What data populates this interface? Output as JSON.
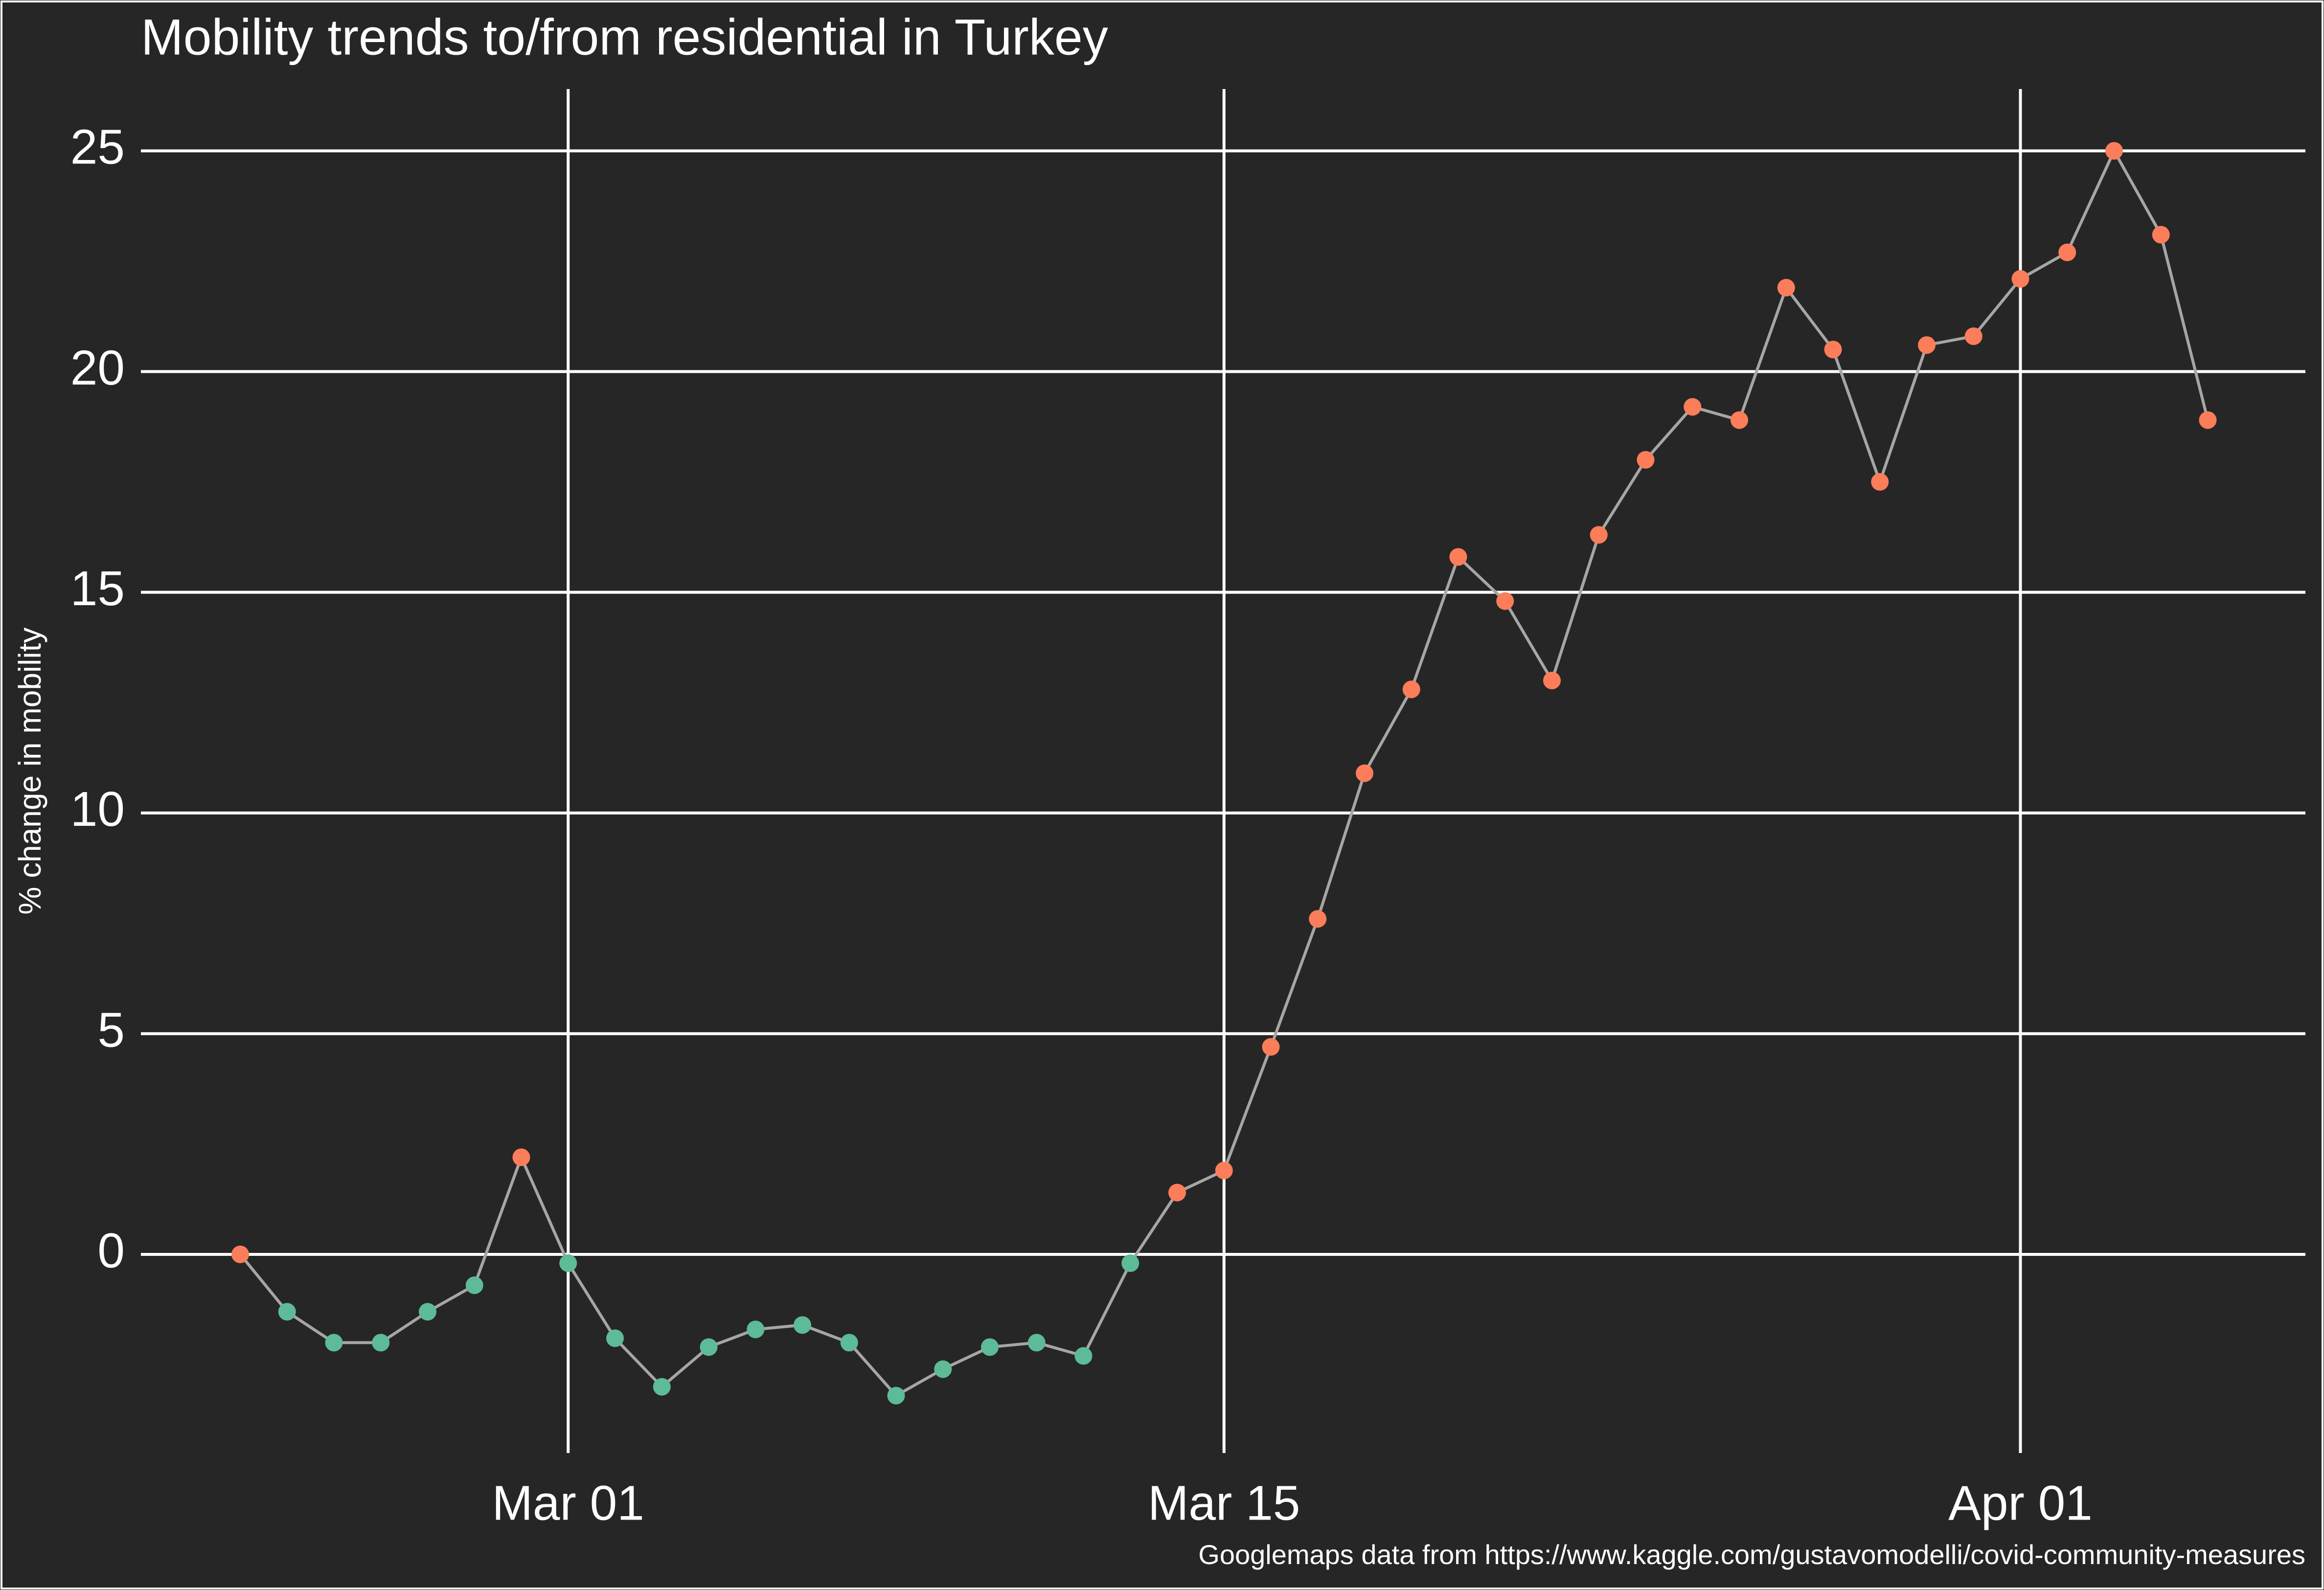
{
  "chart_data": {
    "type": "line",
    "title": "Mobility trends to/from residential in Turkey",
    "y_label": "% change in mobility",
    "caption": "Googlemaps data from https://www.kaggle.com/gustavomodelli/covid-community-measures",
    "x": [
      "Feb 23",
      "Feb 24",
      "Feb 25",
      "Feb 26",
      "Feb 27",
      "Feb 28",
      "Feb 29",
      "Mar 01",
      "Mar 02",
      "Mar 03",
      "Mar 04",
      "Mar 05",
      "Mar 06",
      "Mar 07",
      "Mar 08",
      "Mar 09",
      "Mar 10",
      "Mar 11",
      "Mar 12",
      "Mar 13",
      "Mar 14",
      "Mar 15",
      "Mar 16",
      "Mar 17",
      "Mar 18",
      "Mar 19",
      "Mar 20",
      "Mar 21",
      "Mar 22",
      "Mar 23",
      "Mar 24",
      "Mar 25",
      "Mar 26",
      "Mar 27",
      "Mar 28",
      "Mar 29",
      "Mar 30",
      "Mar 31",
      "Apr 01",
      "Apr 02",
      "Apr 03",
      "Apr 04",
      "Apr 05"
    ],
    "series": [
      {
        "color": "#a6a6a6",
        "values": [
          0.0,
          -1.3,
          -2.0,
          -2.0,
          -1.3,
          -0.7,
          2.2,
          -0.2,
          -1.9,
          -3.0,
          -2.1,
          -1.7,
          -1.6,
          -2.0,
          -3.2,
          -2.6,
          -2.1,
          -2.0,
          -2.3,
          -0.2,
          1.4,
          1.9,
          4.7,
          7.6,
          10.9,
          12.8,
          15.8,
          14.8,
          13.0,
          16.3,
          18.0,
          19.2,
          18.9,
          21.9,
          20.5,
          17.5,
          20.6,
          20.8,
          22.1,
          22.7,
          25.0,
          23.1,
          18.9
        ],
        "marker_colors": [
          "#fc7d5a",
          "#5dbb97",
          "#5dbb97",
          "#5dbb97",
          "#5dbb97",
          "#5dbb97",
          "#fc7d5a",
          "#5dbb97",
          "#5dbb97",
          "#5dbb97",
          "#5dbb97",
          "#5dbb97",
          "#5dbb97",
          "#5dbb97",
          "#5dbb97",
          "#5dbb97",
          "#5dbb97",
          "#5dbb97",
          "#5dbb97",
          "#5dbb97",
          "#fc7d5a",
          "#fc7d5a",
          "#fc7d5a",
          "#fc7d5a",
          "#fc7d5a",
          "#fc7d5a",
          "#fc7d5a",
          "#fc7d5a",
          "#fc7d5a",
          "#fc7d5a",
          "#fc7d5a",
          "#fc7d5a",
          "#fc7d5a",
          "#fc7d5a",
          "#fc7d5a",
          "#fc7d5a",
          "#fc7d5a",
          "#fc7d5a",
          "#fc7d5a",
          "#fc7d5a",
          "#fc7d5a",
          "#fc7d5a",
          "#fc7d5a"
        ]
      }
    ],
    "xticks": [
      "Mar 01",
      "Mar 15",
      "Apr 01"
    ],
    "ylim": [
      -4.5,
      26.4
    ],
    "yticks": [
      0,
      5,
      10,
      15,
      20,
      25
    ],
    "grid": true,
    "background": "#262626"
  }
}
